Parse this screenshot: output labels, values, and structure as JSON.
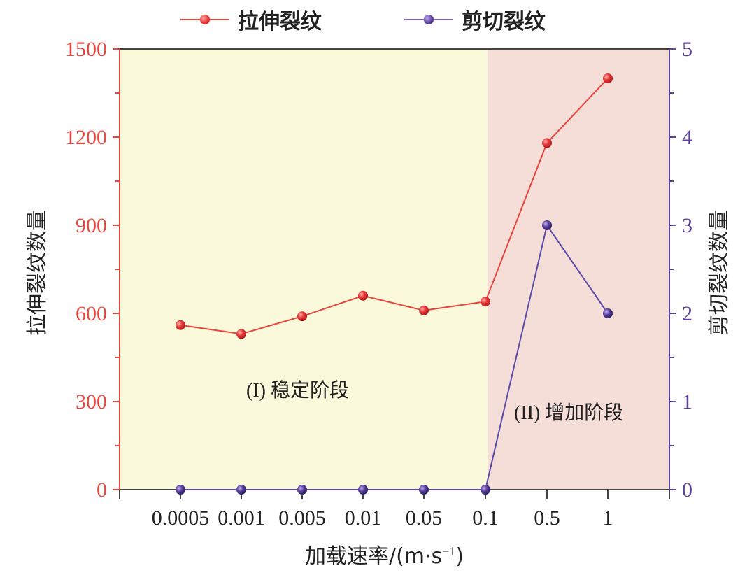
{
  "chart_data": {
    "type": "line",
    "title": "",
    "categories": [
      "0.0005",
      "0.001",
      "0.005",
      "0.01",
      "0.05",
      "0.1",
      "0.5",
      "1"
    ],
    "xlabel": "加载速率/(m·s⁻¹)",
    "ylabel": "拉伸裂纹数量",
    "y2label": "剪切裂纹数量",
    "ylim": [
      0,
      1500
    ],
    "y2lim": [
      0,
      5
    ],
    "yticks": [
      0,
      300,
      600,
      900,
      1200,
      1500
    ],
    "y2ticks": [
      0,
      1,
      2,
      3,
      4,
      5
    ],
    "grid": false,
    "legend_position": "top",
    "series": [
      {
        "name": "拉伸裂纹",
        "axis": "left",
        "color": "#e53935",
        "values": [
          560,
          530,
          590,
          660,
          610,
          640,
          1180,
          1400
        ]
      },
      {
        "name": "剪切裂纹",
        "axis": "right",
        "color": "#5b3f9e",
        "values": [
          0,
          0,
          0,
          0,
          0,
          0,
          3,
          2
        ]
      }
    ],
    "annotations": [
      {
        "text": "(I) 稳定阶段",
        "region": "0.0005–0.1",
        "background": "#fbf9dc"
      },
      {
        "text": "(II) 增加阶段",
        "region": "0.1–1",
        "background": "#f5ddd8"
      }
    ]
  },
  "legend": {
    "tensile": "拉伸裂纹",
    "shear": "剪切裂纹"
  },
  "axes": {
    "left_title": "拉伸裂纹数量",
    "right_title": "剪切裂纹数量",
    "x_title_cn": "加载速率/(m·s",
    "x_title_sup": "−1",
    "x_title_end": ")"
  },
  "phases": {
    "stable": {
      "roman": "(I)",
      "label": "稳定阶段"
    },
    "increase": {
      "roman": "(II)",
      "label": "增加阶段"
    }
  },
  "colors": {
    "left_axis": "#e8453c",
    "right_axis": "#5b3f9e",
    "stable_bg": "#fbf9dc",
    "increase_bg": "#f5ddd8",
    "frame": "#444444"
  }
}
